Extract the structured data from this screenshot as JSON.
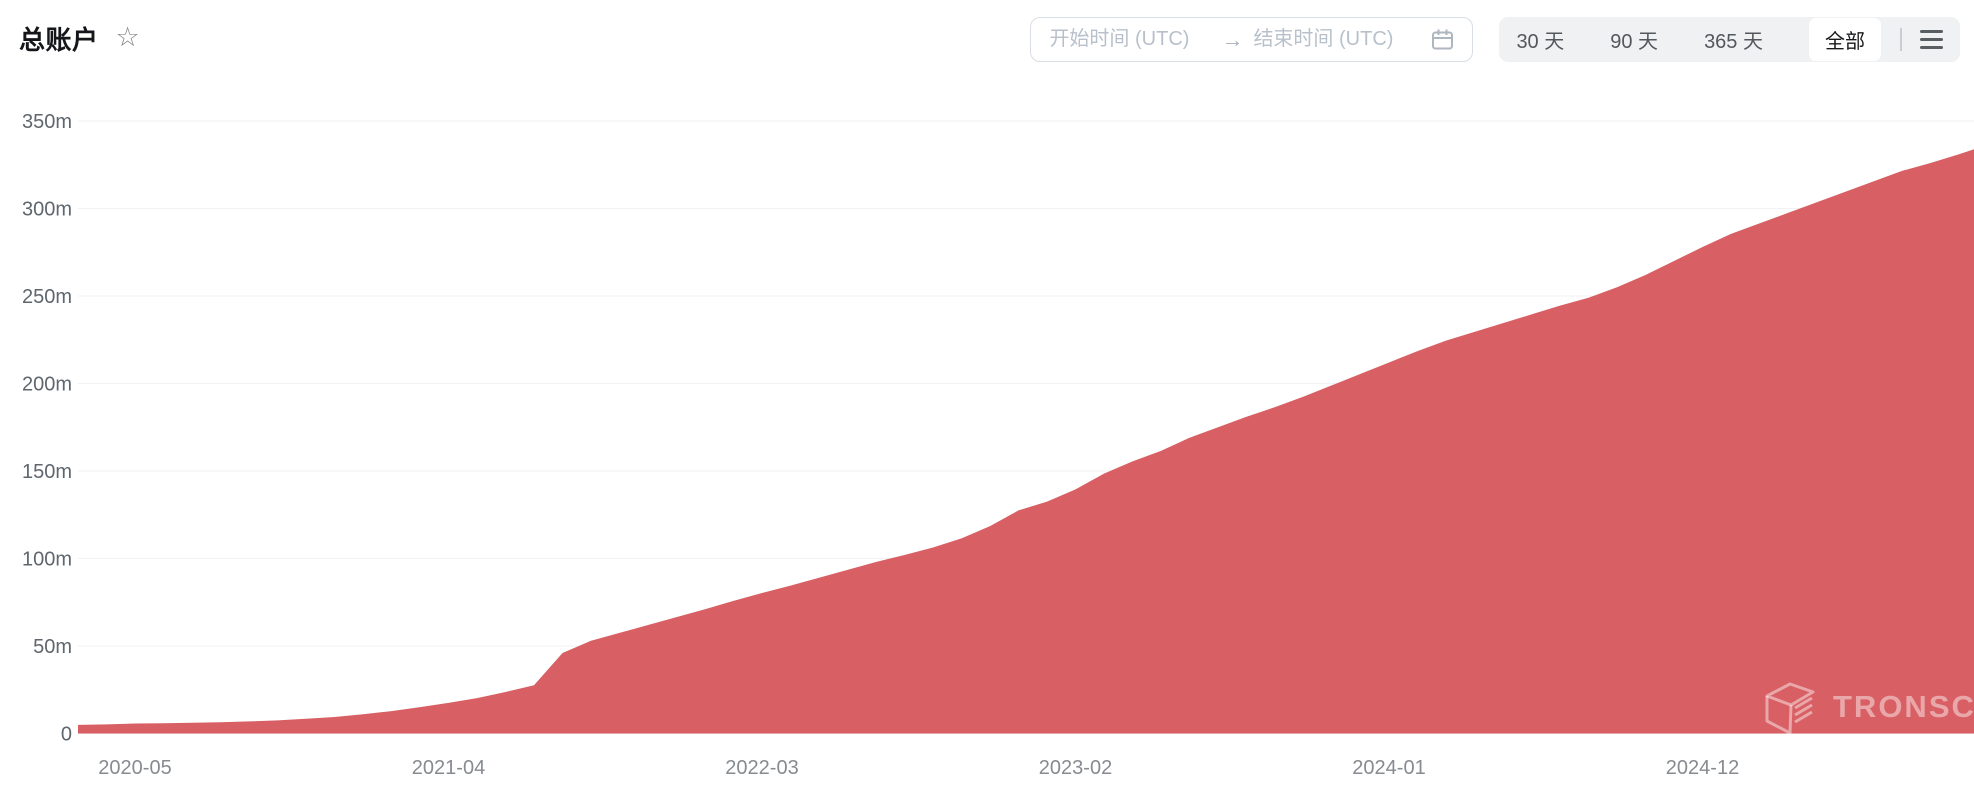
{
  "header": {
    "title": "总账户",
    "star_icon_glyph": "☆",
    "date_range": {
      "start_placeholder": "开始时间 (UTC)",
      "end_placeholder": "结束时间 (UTC)",
      "start_value": "",
      "end_value": "",
      "arrow": "→",
      "calendar_icon": "calendar"
    },
    "range_buttons": [
      {
        "label": "30 天",
        "active": false
      },
      {
        "label": "90 天",
        "active": false
      },
      {
        "label": "365 天",
        "active": false
      },
      {
        "label": "全部",
        "active": true
      }
    ],
    "menu_icon": "hamburger-menu"
  },
  "watermark": {
    "text": "TRONSCAN",
    "logo": "tronscan-cube-logo"
  },
  "colors": {
    "area": "#d85f63",
    "grid": "#f0f2f3",
    "y_tick_text": "#5f666d",
    "x_tick_text": "#878b90",
    "watermark": "rgba(255,255,255,0.45)"
  },
  "chart_data": {
    "type": "area",
    "title": "总账户",
    "ylabel": "",
    "xlabel": "",
    "ylim": [
      0,
      350
    ],
    "grid": true,
    "legend": false,
    "unit": "m (millions of accounts)",
    "y_ticks": [
      "0",
      "50m",
      "100m",
      "150m",
      "200m",
      "250m",
      "300m",
      "350m"
    ],
    "y_tick_values": [
      0,
      50,
      100,
      150,
      200,
      250,
      300,
      350
    ],
    "x_tick_labels": [
      "2020-05",
      "2021-04",
      "2022-03",
      "2023-02",
      "2024-01",
      "2024-12"
    ],
    "x_tick_indices": [
      2,
      13,
      24,
      35,
      46,
      57
    ],
    "x": [
      "2020-03",
      "2020-04",
      "2020-05",
      "2020-06",
      "2020-07",
      "2020-08",
      "2020-09",
      "2020-10",
      "2020-11",
      "2020-12",
      "2021-01",
      "2021-02",
      "2021-03",
      "2021-04",
      "2021-05",
      "2021-06",
      "2021-07",
      "2021-08",
      "2021-09",
      "2021-10",
      "2021-11",
      "2021-12",
      "2022-01",
      "2022-02",
      "2022-03",
      "2022-04",
      "2022-05",
      "2022-06",
      "2022-07",
      "2022-08",
      "2022-09",
      "2022-10",
      "2022-11",
      "2022-12",
      "2023-01",
      "2023-02",
      "2023-03",
      "2023-04",
      "2023-05",
      "2023-06",
      "2023-07",
      "2023-08",
      "2023-09",
      "2023-10",
      "2023-11",
      "2023-12",
      "2024-01",
      "2024-02",
      "2024-03",
      "2024-04",
      "2024-05",
      "2024-06",
      "2024-07",
      "2024-08",
      "2024-09",
      "2024-10",
      "2024-11",
      "2024-12",
      "2025-01",
      "2025-02",
      "2025-03",
      "2025-04",
      "2025-05",
      "2025-06",
      "2025-07",
      "2025-08",
      "2025-09",
      "2025-10"
    ],
    "values": [
      4.9,
      5.2,
      5.7,
      5.9,
      6.1,
      6.4,
      6.9,
      7.5,
      8.4,
      9.4,
      11.0,
      12.8,
      15.1,
      17.5,
      20.2,
      23.7,
      27.6,
      46.0,
      53.0,
      57.5,
      62.0,
      66.5,
      71.0,
      75.8,
      80.3,
      84.5,
      89.0,
      93.5,
      98.0,
      102.0,
      106.3,
      111.5,
      118.5,
      127.5,
      132.5,
      139.5,
      148.5,
      155.5,
      161.5,
      169.0,
      175.0,
      181.0,
      186.5,
      192.5,
      199.0,
      205.5,
      212.0,
      218.5,
      224.5,
      229.5,
      234.5,
      239.5,
      244.5,
      249.0,
      255.0,
      262.0,
      270.0,
      278.0,
      285.5,
      291.5,
      297.5,
      303.5,
      309.5,
      315.5,
      321.5,
      326.0,
      331.0,
      336.5
    ]
  }
}
